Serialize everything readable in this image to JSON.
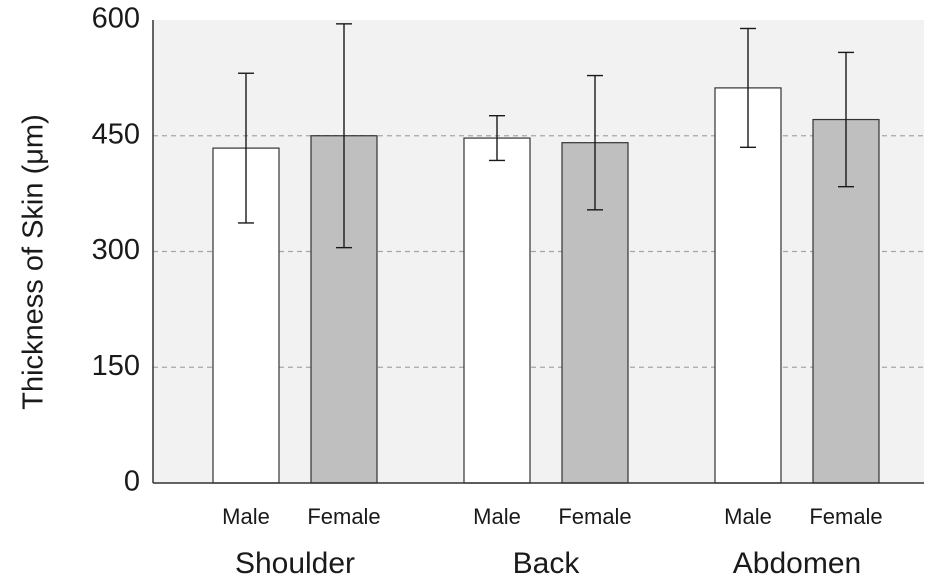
{
  "chart_data": {
    "type": "bar",
    "ylabel": "Thickness of Skin (μm)",
    "ylim": [
      0,
      600
    ],
    "yticks": [
      "0",
      "150",
      "300",
      "450",
      "600"
    ],
    "ytick_values": [
      0,
      150,
      300,
      450,
      600
    ],
    "gridlines": "dashed",
    "groups": [
      "Shoulder",
      "Back",
      "Abdomen"
    ],
    "sublabels": [
      "Male",
      "Female"
    ],
    "series": [
      {
        "name": "Male",
        "values": [
          434,
          447,
          512
        ],
        "errors": [
          97,
          29,
          77
        ],
        "color": "#ffffff"
      },
      {
        "name": "Female",
        "values": [
          450,
          441,
          471
        ],
        "errors": [
          145,
          87,
          87
        ],
        "color": "#bfbfbf"
      }
    ]
  }
}
